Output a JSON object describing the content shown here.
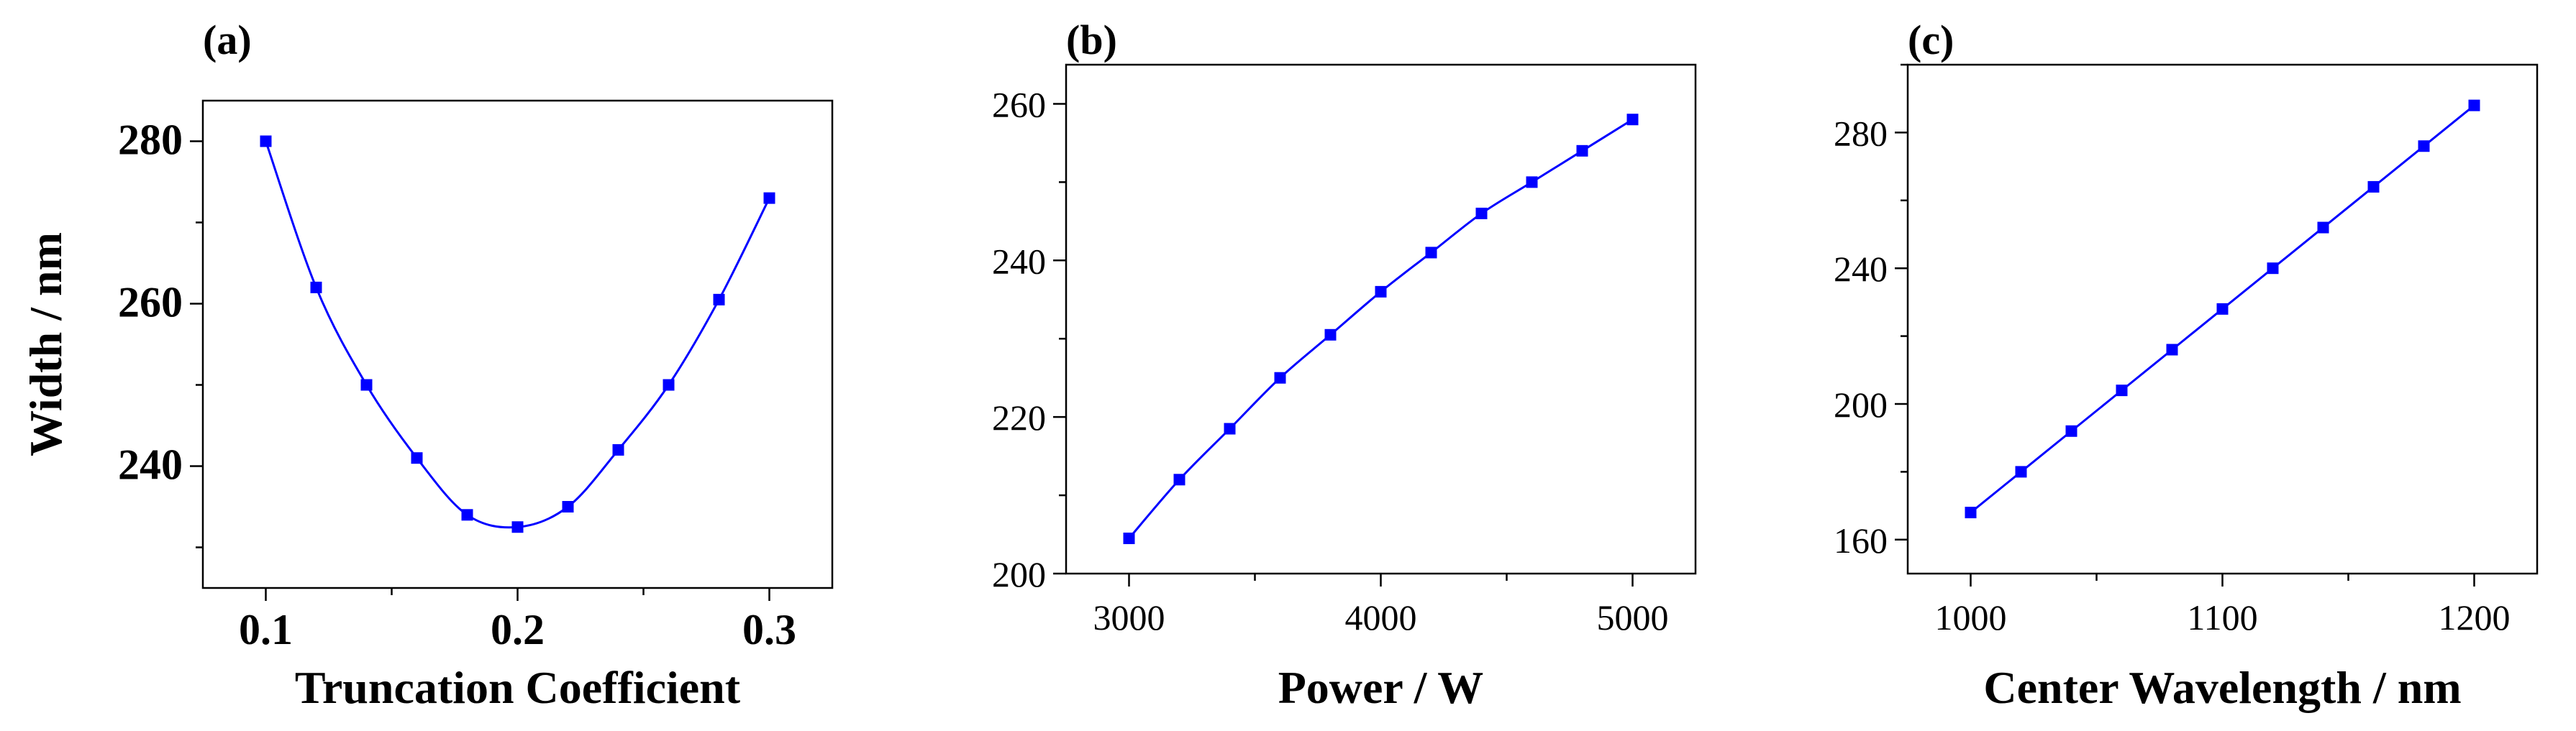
{
  "chart_data": [
    {
      "type": "line",
      "panel_label": "(a)",
      "xlabel": "Truncation Coefficient",
      "ylabel": "Width / nm",
      "xlim": [
        0.075,
        0.325
      ],
      "ylim": [
        225,
        285
      ],
      "xticks": [
        0.1,
        0.2,
        0.3
      ],
      "xtick_labels": [
        "0.1",
        "0.2",
        "0.3"
      ],
      "yticks": [
        240,
        260,
        280
      ],
      "ytick_labels": [
        "240",
        "260",
        "280"
      ],
      "smooth": true,
      "marker": "square",
      "color": "#0000ff",
      "grid": false,
      "x": [
        0.1,
        0.12,
        0.14,
        0.16,
        0.18,
        0.2,
        0.22,
        0.24,
        0.26,
        0.28,
        0.3
      ],
      "y": [
        280.0,
        262.0,
        250.0,
        241.0,
        234.0,
        232.5,
        235.0,
        242.0,
        250.0,
        260.5,
        273.0
      ]
    },
    {
      "type": "line",
      "panel_label": "(b)",
      "xlabel": "Power / W",
      "ylabel": "",
      "xlim": [
        2750,
        5250
      ],
      "ylim": [
        200,
        265
      ],
      "xticks": [
        3000,
        4000,
        5000
      ],
      "xtick_labels": [
        "3000",
        "4000",
        "5000"
      ],
      "yticks": [
        200,
        220,
        240,
        260
      ],
      "ytick_labels": [
        "200",
        "220",
        "240",
        "260"
      ],
      "smooth": true,
      "marker": "square",
      "color": "#0000ff",
      "grid": false,
      "x": [
        3000,
        3200,
        3400,
        3600,
        3800,
        4000,
        4200,
        4400,
        4600,
        4800,
        5000
      ],
      "y": [
        204.5,
        212.0,
        218.5,
        225.0,
        230.5,
        236.0,
        241.0,
        246.0,
        250.0,
        254.0,
        258.0
      ]
    },
    {
      "type": "line",
      "panel_label": "(c)",
      "xlabel": "Center Wavelength / nm",
      "ylabel": "",
      "xlim": [
        975,
        1225
      ],
      "ylim": [
        150,
        300
      ],
      "xticks": [
        1000,
        1100,
        1200
      ],
      "xtick_labels": [
        "1000",
        "1100",
        "1200"
      ],
      "yticks": [
        160,
        200,
        240,
        280
      ],
      "ytick_labels": [
        "160",
        "200",
        "240",
        "280"
      ],
      "smooth": false,
      "marker": "square",
      "color": "#0000ff",
      "grid": false,
      "x": [
        1000,
        1020,
        1040,
        1060,
        1080,
        1100,
        1120,
        1140,
        1160,
        1180,
        1200
      ],
      "y": [
        168,
        180,
        192,
        204,
        216,
        228,
        240,
        252,
        264,
        276,
        288
      ]
    }
  ]
}
